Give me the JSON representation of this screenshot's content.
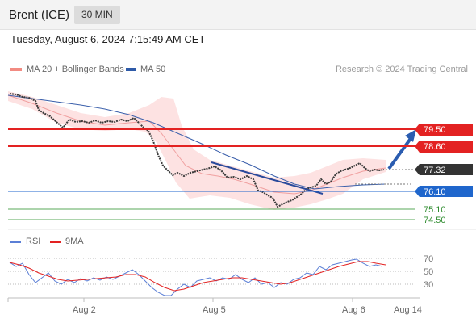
{
  "instrument": {
    "title": "Brent (ICE)",
    "interval": "30 MIN"
  },
  "datetime": "Tuesday, August 6, 2024 7:15:49 AM CET",
  "legend": {
    "ma20": {
      "label": "MA 20 + Bollinger Bands",
      "color": "#f28b82"
    },
    "ma50": {
      "label": "MA 50",
      "color": "#2e5aa8"
    }
  },
  "copyright": "Research © 2024 Trading Central",
  "levels": {
    "r2": {
      "label": "79.50",
      "color": "#e32222"
    },
    "r1": {
      "label": "78.60",
      "color": "#e32222"
    },
    "last": {
      "label": "77.32",
      "color": "#333333"
    },
    "pivot": {
      "label": "76.10",
      "color": "#1f66cc"
    },
    "s1": {
      "label": "75.10",
      "color": "#2e8b2e"
    },
    "s2": {
      "label": "74.50",
      "color": "#2e8b2e"
    }
  },
  "rsi": {
    "legend_rsi": "RSI",
    "legend_ma": "9MA",
    "rsi_color": "#5b7fd6",
    "ma_color": "#e32222",
    "ticks": [
      "70",
      "50",
      "30"
    ]
  },
  "xaxis": [
    "Aug 2",
    "Aug 5",
    "Aug 6",
    "Aug 14"
  ]
}
